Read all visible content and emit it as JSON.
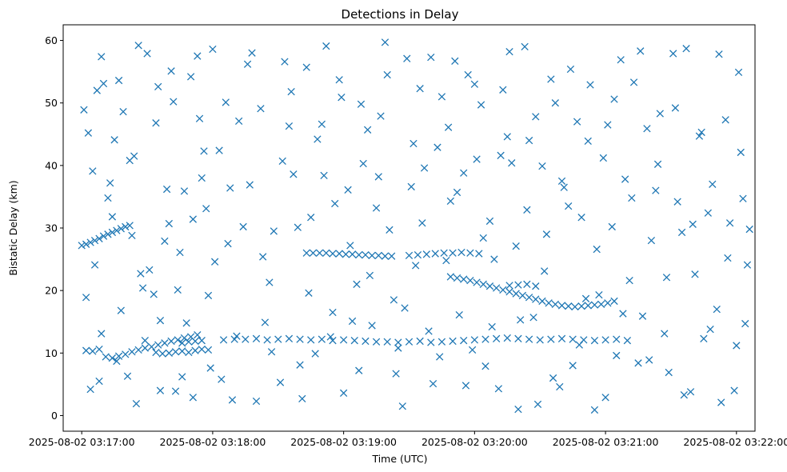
{
  "chart_data": {
    "type": "scatter",
    "title": "Detections in Delay",
    "xlabel": "Time (UTC)",
    "ylabel": "Bistatic Delay (km)",
    "marker": "x",
    "color": "#1f77b4",
    "grid": false,
    "legend": "none",
    "x_axis": {
      "kind": "time",
      "start": "2025-08-02 03:17:00",
      "range_seconds": [
        -8.5,
        308.5
      ],
      "ticks": [
        "2025-08-02 03:17:00",
        "2025-08-02 03:18:00",
        "2025-08-02 03:19:00",
        "2025-08-02 03:20:00",
        "2025-08-02 03:21:00",
        "2025-08-02 03:22:00"
      ]
    },
    "y_axis": {
      "ylim": [
        -2.5,
        62.5
      ],
      "ticks": [
        "0",
        "10",
        "20",
        "30",
        "40",
        "50",
        "60"
      ]
    },
    "point_format": "[seconds after 2025-08-02 03:17:00, bistatic delay km]",
    "points": [
      [
        0,
        27.2
      ],
      [
        2,
        27.4
      ],
      [
        4,
        27.7
      ],
      [
        6,
        28.0
      ],
      [
        8,
        28.3
      ],
      [
        10,
        28.7
      ],
      [
        12,
        29.0
      ],
      [
        14,
        29.3
      ],
      [
        16,
        29.6
      ],
      [
        18,
        29.9
      ],
      [
        20,
        30.2
      ],
      [
        22,
        30.4
      ],
      [
        2,
        10.4
      ],
      [
        5,
        10.3
      ],
      [
        8,
        10.6
      ],
      [
        11,
        9.4
      ],
      [
        14,
        9.2
      ],
      [
        17,
        9.5
      ],
      [
        20,
        9.8
      ],
      [
        23,
        10.2
      ],
      [
        26,
        10.5
      ],
      [
        29,
        10.8
      ],
      [
        32,
        11.0
      ],
      [
        35,
        11.3
      ],
      [
        38,
        11.6
      ],
      [
        41,
        11.9
      ],
      [
        44,
        12.1
      ],
      [
        47,
        12.4
      ],
      [
        50,
        12.6
      ],
      [
        53,
        12.9
      ],
      [
        34,
        10.1
      ],
      [
        37,
        9.9
      ],
      [
        40,
        10.0
      ],
      [
        43,
        10.2
      ],
      [
        46,
        10.3
      ],
      [
        49,
        10.1
      ],
      [
        52,
        10.4
      ],
      [
        55,
        10.6
      ],
      [
        58,
        10.5
      ],
      [
        46,
        11.6
      ],
      [
        49,
        11.8
      ],
      [
        52,
        11.9
      ],
      [
        55,
        12.0
      ],
      [
        65,
        12.1
      ],
      [
        70,
        12.2
      ],
      [
        75,
        12.2
      ],
      [
        80,
        12.3
      ],
      [
        85,
        12.1
      ],
      [
        90,
        12.2
      ],
      [
        95,
        12.3
      ],
      [
        100,
        12.2
      ],
      [
        105,
        12.1
      ],
      [
        110,
        12.2
      ],
      [
        115,
        12.0
      ],
      [
        120,
        12.1
      ],
      [
        125,
        12.0
      ],
      [
        130,
        11.9
      ],
      [
        135,
        11.8
      ],
      [
        140,
        11.8
      ],
      [
        145,
        11.7
      ],
      [
        150,
        11.8
      ],
      [
        155,
        11.9
      ],
      [
        160,
        11.7
      ],
      [
        165,
        11.8
      ],
      [
        170,
        11.9
      ],
      [
        175,
        12.0
      ],
      [
        180,
        12.1
      ],
      [
        185,
        12.2
      ],
      [
        190,
        12.3
      ],
      [
        195,
        12.4
      ],
      [
        200,
        12.3
      ],
      [
        205,
        12.2
      ],
      [
        210,
        12.1
      ],
      [
        215,
        12.2
      ],
      [
        220,
        12.3
      ],
      [
        225,
        12.2
      ],
      [
        230,
        12.1
      ],
      [
        235,
        12.0
      ],
      [
        240,
        12.1
      ],
      [
        245,
        12.2
      ],
      [
        250,
        12.0
      ],
      [
        103,
        26.0
      ],
      [
        106,
        26.0
      ],
      [
        109,
        26.0
      ],
      [
        112,
        26.0
      ],
      [
        115,
        25.9
      ],
      [
        118,
        25.9
      ],
      [
        121,
        25.8
      ],
      [
        124,
        25.8
      ],
      [
        127,
        25.7
      ],
      [
        130,
        25.7
      ],
      [
        133,
        25.6
      ],
      [
        136,
        25.6
      ],
      [
        139,
        25.5
      ],
      [
        142,
        25.5
      ],
      [
        150,
        25.6
      ],
      [
        154,
        25.7
      ],
      [
        158,
        25.8
      ],
      [
        162,
        25.9
      ],
      [
        166,
        26.0
      ],
      [
        170,
        26.0
      ],
      [
        174,
        26.1
      ],
      [
        178,
        26.0
      ],
      [
        182,
        25.9
      ],
      [
        169,
        22.2
      ],
      [
        172,
        22.0
      ],
      [
        175,
        21.8
      ],
      [
        178,
        21.6
      ],
      [
        181,
        21.3
      ],
      [
        184,
        21.0
      ],
      [
        187,
        20.7
      ],
      [
        190,
        20.4
      ],
      [
        193,
        20.1
      ],
      [
        196,
        19.8
      ],
      [
        199,
        19.5
      ],
      [
        202,
        19.2
      ],
      [
        205,
        18.9
      ],
      [
        208,
        18.6
      ],
      [
        211,
        18.3
      ],
      [
        214,
        18.0
      ],
      [
        217,
        17.8
      ],
      [
        220,
        17.6
      ],
      [
        223,
        17.5
      ],
      [
        226,
        17.4
      ],
      [
        229,
        17.5
      ],
      [
        232,
        17.6
      ],
      [
        235,
        17.7
      ],
      [
        238,
        17.8
      ],
      [
        241,
        18.0
      ],
      [
        244,
        18.3
      ],
      [
        196,
        20.8
      ],
      [
        200,
        20.9
      ],
      [
        204,
        21.0
      ],
      [
        208,
        20.7
      ],
      [
        1,
        48.9
      ],
      [
        3,
        45.2
      ],
      [
        5,
        39.1
      ],
      [
        7,
        52.0
      ],
      [
        9,
        57.4
      ],
      [
        12,
        34.8
      ],
      [
        15,
        44.1
      ],
      [
        18,
        16.8
      ],
      [
        21,
        6.3
      ],
      [
        24,
        41.5
      ],
      [
        27,
        22.7
      ],
      [
        30,
        57.9
      ],
      [
        33,
        19.4
      ],
      [
        36,
        4.0
      ],
      [
        39,
        36.2
      ],
      [
        42,
        50.2
      ],
      [
        45,
        26.1
      ],
      [
        48,
        14.8
      ],
      [
        51,
        2.9
      ],
      [
        54,
        47.5
      ],
      [
        57,
        33.1
      ],
      [
        60,
        58.6
      ],
      [
        2,
        18.9
      ],
      [
        4,
        4.2
      ],
      [
        6,
        24.1
      ],
      [
        9,
        13.1
      ],
      [
        13,
        37.2
      ],
      [
        17,
        53.6
      ],
      [
        22,
        40.8
      ],
      [
        26,
        59.2
      ],
      [
        31,
        23.3
      ],
      [
        36,
        15.2
      ],
      [
        41,
        55.1
      ],
      [
        46,
        6.2
      ],
      [
        51,
        31.4
      ],
      [
        56,
        42.3
      ],
      [
        61,
        24.6
      ],
      [
        64,
        5.8
      ],
      [
        68,
        36.4
      ],
      [
        72,
        47.1
      ],
      [
        76,
        56.2
      ],
      [
        80,
        2.3
      ],
      [
        84,
        14.9
      ],
      [
        88,
        29.5
      ],
      [
        92,
        40.7
      ],
      [
        96,
        51.8
      ],
      [
        100,
        8.1
      ],
      [
        104,
        19.6
      ],
      [
        108,
        44.2
      ],
      [
        112,
        59.1
      ],
      [
        116,
        33.9
      ],
      [
        120,
        3.6
      ],
      [
        124,
        15.1
      ],
      [
        128,
        49.8
      ],
      [
        132,
        22.4
      ],
      [
        136,
        38.2
      ],
      [
        140,
        54.5
      ],
      [
        144,
        6.7
      ],
      [
        148,
        17.2
      ],
      [
        152,
        43.5
      ],
      [
        156,
        30.8
      ],
      [
        160,
        57.3
      ],
      [
        164,
        9.4
      ],
      [
        168,
        46.1
      ],
      [
        172,
        35.7
      ],
      [
        176,
        4.8
      ],
      [
        180,
        53.0
      ],
      [
        184,
        28.4
      ],
      [
        188,
        14.2
      ],
      [
        192,
        41.6
      ],
      [
        196,
        58.2
      ],
      [
        200,
        1.0
      ],
      [
        204,
        32.9
      ],
      [
        208,
        47.8
      ],
      [
        212,
        23.1
      ],
      [
        216,
        6.0
      ],
      [
        220,
        37.5
      ],
      [
        224,
        55.4
      ],
      [
        228,
        11.3
      ],
      [
        232,
        43.9
      ],
      [
        236,
        26.6
      ],
      [
        240,
        2.9
      ],
      [
        244,
        50.6
      ],
      [
        248,
        16.3
      ],
      [
        252,
        34.8
      ],
      [
        256,
        58.3
      ],
      [
        260,
        8.9
      ],
      [
        264,
        40.2
      ],
      [
        268,
        22.1
      ],
      [
        272,
        49.2
      ],
      [
        276,
        3.3
      ],
      [
        280,
        30.6
      ],
      [
        284,
        45.3
      ],
      [
        288,
        13.8
      ],
      [
        292,
        57.8
      ],
      [
        296,
        25.2
      ],
      [
        300,
        11.2
      ],
      [
        303,
        34.7
      ],
      [
        305,
        24.1
      ],
      [
        304,
        14.7
      ],
      [
        8,
        5.5
      ],
      [
        14,
        31.8
      ],
      [
        19,
        48.6
      ],
      [
        25,
        1.9
      ],
      [
        28,
        20.4
      ],
      [
        34,
        46.8
      ],
      [
        38,
        27.9
      ],
      [
        43,
        3.9
      ],
      [
        47,
        35.9
      ],
      [
        53,
        57.5
      ],
      [
        58,
        19.2
      ],
      [
        63,
        42.4
      ],
      [
        67,
        27.5
      ],
      [
        71,
        12.7
      ],
      [
        77,
        36.9
      ],
      [
        82,
        49.1
      ],
      [
        86,
        21.3
      ],
      [
        91,
        5.3
      ],
      [
        95,
        46.3
      ],
      [
        99,
        30.1
      ],
      [
        103,
        55.7
      ],
      [
        107,
        9.9
      ],
      [
        111,
        38.4
      ],
      [
        115,
        16.5
      ],
      [
        119,
        50.9
      ],
      [
        123,
        27.2
      ],
      [
        127,
        7.2
      ],
      [
        131,
        45.7
      ],
      [
        135,
        33.2
      ],
      [
        139,
        59.7
      ],
      [
        143,
        18.5
      ],
      [
        147,
        1.5
      ],
      [
        151,
        36.6
      ],
      [
        155,
        52.3
      ],
      [
        159,
        13.5
      ],
      [
        163,
        42.9
      ],
      [
        167,
        24.8
      ],
      [
        171,
        56.7
      ],
      [
        175,
        38.8
      ],
      [
        179,
        10.5
      ],
      [
        183,
        49.7
      ],
      [
        187,
        31.1
      ],
      [
        191,
        4.3
      ],
      [
        195,
        44.6
      ],
      [
        199,
        27.1
      ],
      [
        203,
        59.0
      ],
      [
        207,
        15.7
      ],
      [
        211,
        39.9
      ],
      [
        215,
        53.8
      ],
      [
        219,
        4.6
      ],
      [
        223,
        33.5
      ],
      [
        227,
        47.0
      ],
      [
        231,
        18.7
      ],
      [
        235,
        0.9
      ],
      [
        239,
        41.2
      ],
      [
        243,
        30.2
      ],
      [
        247,
        56.9
      ],
      [
        251,
        21.6
      ],
      [
        255,
        8.4
      ],
      [
        259,
        45.9
      ],
      [
        263,
        36.0
      ],
      [
        267,
        13.1
      ],
      [
        271,
        57.9
      ],
      [
        275,
        29.3
      ],
      [
        279,
        3.8
      ],
      [
        283,
        44.7
      ],
      [
        287,
        32.4
      ],
      [
        291,
        17.0
      ],
      [
        295,
        47.3
      ],
      [
        299,
        4.0
      ],
      [
        302,
        42.1
      ],
      [
        10,
        53.1
      ],
      [
        16,
        8.7
      ],
      [
        23,
        28.8
      ],
      [
        29,
        12.0
      ],
      [
        35,
        52.6
      ],
      [
        40,
        30.7
      ],
      [
        44,
        20.1
      ],
      [
        50,
        54.2
      ],
      [
        55,
        38.0
      ],
      [
        59,
        7.6
      ],
      [
        66,
        50.1
      ],
      [
        69,
        2.5
      ],
      [
        74,
        30.2
      ],
      [
        78,
        58.0
      ],
      [
        83,
        25.4
      ],
      [
        87,
        10.2
      ],
      [
        93,
        56.6
      ],
      [
        97,
        38.6
      ],
      [
        101,
        2.7
      ],
      [
        105,
        31.7
      ],
      [
        110,
        46.6
      ],
      [
        114,
        12.6
      ],
      [
        118,
        53.7
      ],
      [
        122,
        36.1
      ],
      [
        126,
        21.0
      ],
      [
        129,
        40.3
      ],
      [
        133,
        14.4
      ],
      [
        137,
        47.9
      ],
      [
        141,
        29.7
      ],
      [
        145,
        10.8
      ],
      [
        149,
        57.1
      ],
      [
        153,
        24.0
      ],
      [
        157,
        39.6
      ],
      [
        161,
        5.1
      ],
      [
        165,
        51.0
      ],
      [
        169,
        34.3
      ],
      [
        173,
        16.1
      ],
      [
        177,
        54.5
      ],
      [
        181,
        41.0
      ],
      [
        185,
        7.9
      ],
      [
        189,
        25.0
      ],
      [
        193,
        52.1
      ],
      [
        197,
        40.4
      ],
      [
        201,
        15.3
      ],
      [
        205,
        44.0
      ],
      [
        209,
        1.8
      ],
      [
        213,
        29.0
      ],
      [
        217,
        50.0
      ],
      [
        221,
        36.5
      ],
      [
        225,
        8.0
      ],
      [
        229,
        31.7
      ],
      [
        233,
        52.9
      ],
      [
        237,
        19.3
      ],
      [
        241,
        46.5
      ],
      [
        245,
        9.6
      ],
      [
        249,
        37.8
      ],
      [
        253,
        53.3
      ],
      [
        257,
        15.9
      ],
      [
        261,
        28.0
      ],
      [
        265,
        48.3
      ],
      [
        269,
        6.9
      ],
      [
        273,
        34.2
      ],
      [
        277,
        58.7
      ],
      [
        281,
        22.6
      ],
      [
        285,
        12.3
      ],
      [
        289,
        37.0
      ],
      [
        293,
        2.1
      ],
      [
        297,
        30.8
      ],
      [
        301,
        54.9
      ],
      [
        306,
        29.8
      ]
    ]
  }
}
